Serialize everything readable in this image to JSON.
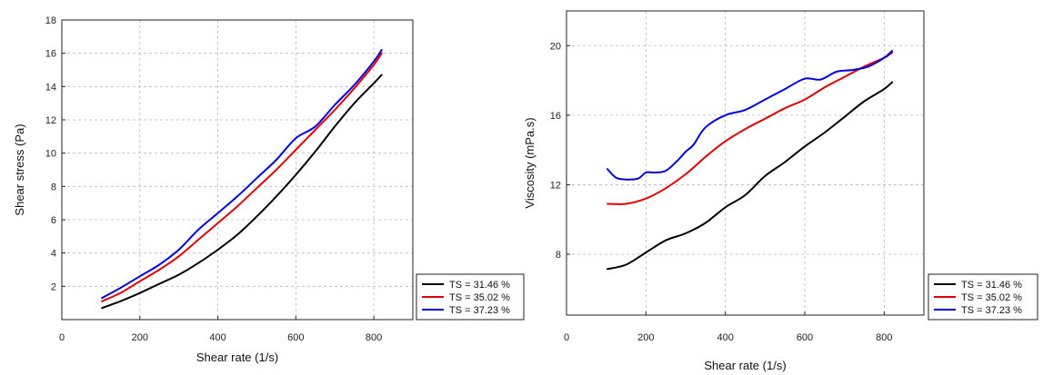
{
  "chart_data": [
    {
      "type": "line",
      "xlabel": "Shear rate (1/s)",
      "ylabel": "Shear stress (Pa)",
      "xlim": [
        0,
        900
      ],
      "ylim": [
        0,
        18
      ],
      "xticks": [
        "0",
        "200",
        "400",
        "600",
        "800"
      ],
      "yticks": [
        "2",
        "4",
        "6",
        "8",
        "10",
        "12",
        "14",
        "16",
        "18"
      ],
      "grid": true,
      "legend_position": "outside-bottom-right",
      "series": [
        {
          "name": "TS = 31.46 %",
          "color": "#000000",
          "x": [
            103,
            150,
            200,
            250,
            300,
            350,
            400,
            450,
            500,
            550,
            600,
            650,
            700,
            750,
            800,
            820
          ],
          "y": [
            0.7,
            1.1,
            1.6,
            2.15,
            2.7,
            3.4,
            4.2,
            5.1,
            6.2,
            7.4,
            8.7,
            10.1,
            11.6,
            13.0,
            14.2,
            14.7
          ]
        },
        {
          "name": "TS = 35.02 %",
          "color": "#e00000",
          "x": [
            103,
            150,
            200,
            250,
            300,
            350,
            400,
            450,
            500,
            550,
            600,
            650,
            700,
            750,
            800,
            820
          ],
          "y": [
            1.1,
            1.6,
            2.3,
            3.0,
            3.8,
            4.8,
            5.8,
            6.8,
            7.9,
            9.0,
            10.2,
            11.4,
            12.6,
            13.9,
            15.3,
            16.0
          ]
        },
        {
          "name": "TS = 37.23 %",
          "color": "#0000e0",
          "x": [
            103,
            150,
            200,
            250,
            300,
            350,
            400,
            450,
            500,
            550,
            600,
            650,
            700,
            750,
            800,
            820
          ],
          "y": [
            1.3,
            1.9,
            2.6,
            3.3,
            4.2,
            5.4,
            6.4,
            7.4,
            8.5,
            9.6,
            10.9,
            11.6,
            12.9,
            14.1,
            15.5,
            16.2
          ]
        }
      ]
    },
    {
      "type": "line",
      "xlabel": "Shear rate (1/s)",
      "ylabel": "Viscosity (mPa.s)",
      "xlim": [
        0,
        900
      ],
      "ylim": [
        4.5,
        22
      ],
      "xticks": [
        "0",
        "200",
        "400",
        "600",
        "800"
      ],
      "yticks": [
        "8",
        "12",
        "16",
        "20"
      ],
      "grid": true,
      "legend_position": "outside-bottom-right",
      "series": [
        {
          "name": "TS = 31.46 %",
          "color": "#000000",
          "x": [
            103,
            150,
            200,
            250,
            300,
            350,
            400,
            450,
            500,
            550,
            600,
            650,
            700,
            750,
            800,
            820
          ],
          "y": [
            7.15,
            7.4,
            8.1,
            8.8,
            9.2,
            9.8,
            10.7,
            11.4,
            12.5,
            13.3,
            14.2,
            15.0,
            15.9,
            16.8,
            17.5,
            17.9
          ]
        },
        {
          "name": "TS = 35.02 %",
          "color": "#e00000",
          "x": [
            103,
            150,
            200,
            250,
            300,
            350,
            400,
            450,
            500,
            550,
            600,
            650,
            700,
            750,
            800,
            820
          ],
          "y": [
            10.9,
            10.9,
            11.2,
            11.8,
            12.6,
            13.6,
            14.5,
            15.2,
            15.8,
            16.4,
            16.9,
            17.6,
            18.2,
            18.8,
            19.3,
            19.6
          ]
        },
        {
          "name": "TS = 37.23 %",
          "color": "#0000e0",
          "x": [
            103,
            125,
            150,
            180,
            200,
            220,
            250,
            280,
            300,
            320,
            350,
            400,
            450,
            500,
            550,
            600,
            640,
            680,
            720,
            760,
            800,
            820
          ],
          "y": [
            12.9,
            12.4,
            12.3,
            12.35,
            12.7,
            12.7,
            12.8,
            13.4,
            13.9,
            14.3,
            15.3,
            16.0,
            16.3,
            16.9,
            17.5,
            18.1,
            18.05,
            18.5,
            18.6,
            18.8,
            19.3,
            19.7
          ]
        }
      ]
    }
  ]
}
